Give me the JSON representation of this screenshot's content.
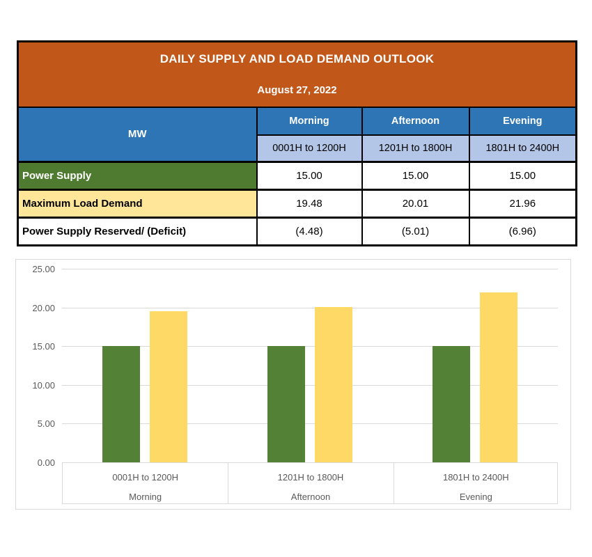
{
  "table": {
    "title_line1": "DAILY SUPPLY AND LOAD DEMAND OUTLOOK",
    "title_line2": "August 27, 2022",
    "corner_header": "MW",
    "period_headers": [
      "Morning",
      "Afternoon",
      "Evening"
    ],
    "time_headers": [
      "0001H to 1200H",
      "1201H to 1800H",
      "1801H to 2400H"
    ],
    "rows": [
      {
        "label": "Power Supply",
        "values": [
          "15.00",
          "15.00",
          "15.00"
        ]
      },
      {
        "label": "Maximum Load Demand",
        "values": [
          "19.48",
          "20.01",
          "21.96"
        ]
      },
      {
        "label": "Power Supply Reserved/ (Deficit)",
        "values": [
          "(4.48)",
          "(5.01)",
          "(6.96)"
        ]
      }
    ]
  },
  "colors": {
    "title_bg": "#C2571A",
    "header_bg": "#2E75B6",
    "subheader_bg": "#B4C6E7",
    "supply_row_bg": "#4F7B31",
    "demand_row_bg": "#FFE699",
    "grid": "#D9D9D9",
    "axis_text": "#595959"
  },
  "chart_data": {
    "type": "bar",
    "title": "",
    "categories": [
      {
        "time": "0001H to 1200H",
        "period": "Morning"
      },
      {
        "time": "1201H to 1800H",
        "period": "Afternoon"
      },
      {
        "time": "1801H to 2400H",
        "period": "Evening"
      }
    ],
    "series": [
      {
        "name": "Power Supply",
        "color": "#538135",
        "values": [
          15.0,
          15.0,
          15.0
        ]
      },
      {
        "name": "Maximum Load Demand",
        "color": "#FFD966",
        "values": [
          19.48,
          20.01,
          21.96
        ]
      }
    ],
    "xlabel": "",
    "ylabel": "",
    "ylim": [
      0,
      25
    ],
    "yticks": [
      0,
      5,
      10,
      15,
      20,
      25
    ],
    "ytick_decimals": 2,
    "grid": true,
    "legend_position": "none"
  }
}
